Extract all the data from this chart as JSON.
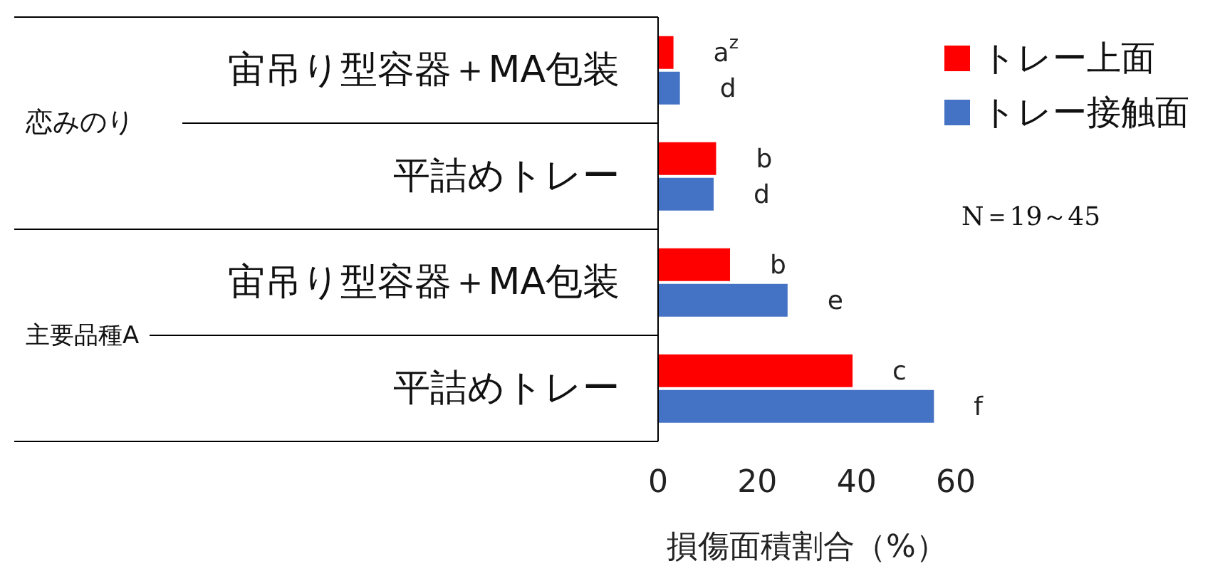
{
  "chart_data": {
    "type": "bar",
    "orientation": "horizontal",
    "categories": [
      "宙吊り型容器＋MA包装",
      "平詰めトレー",
      "宙吊り型容器＋MA包装",
      "平詰めトレー"
    ],
    "series": [
      {
        "name": "トレー上面",
        "color": "#ff0000",
        "values": [
          3.1,
          11.7,
          14.5,
          39.2
        ],
        "value_labels": [
          "a$^{z}$",
          "b",
          "b",
          "c"
        ]
      },
      {
        "name": "トレー接触面",
        "color": "#4472c4",
        "values": [
          4.4,
          11.2,
          26.1,
          55.6
        ],
        "value_labels": [
          "d",
          "d",
          "e",
          "f"
        ]
      }
    ],
    "xlim": [
      0,
      60
    ],
    "xticks": [
      0,
      20,
      40,
      60
    ],
    "xlabel": "損傷面積割合（%）",
    "legend": "top right",
    "annotations": [
      "恋みのり",
      "主要品種A",
      "N＝19～45"
    ]
  }
}
